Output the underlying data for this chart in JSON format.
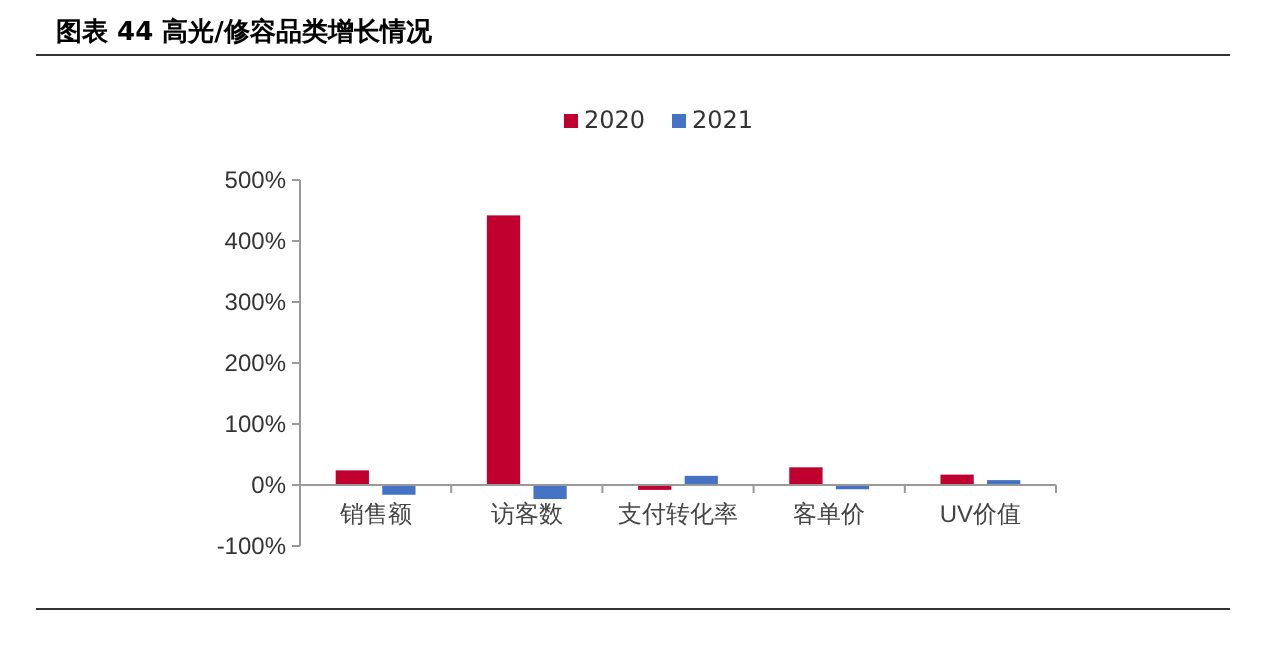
{
  "chart_data": {
    "type": "bar",
    "title": "图表 44 高光/修容品类增长情况",
    "categories": [
      "销售额",
      "访客数",
      "支付转化率",
      "客单价",
      "UV价值"
    ],
    "series": [
      {
        "name": "2020",
        "color": "#c0002f",
        "values": [
          24,
          442,
          -8,
          29,
          17
        ]
      },
      {
        "name": "2021",
        "color": "#4472c4",
        "values": [
          -16,
          -23,
          15,
          -7,
          8
        ]
      }
    ],
    "ylim": [
      -100,
      500
    ],
    "yticks": [
      {
        "value": -100,
        "label": "-100%"
      },
      {
        "value": 0,
        "label": "0%"
      },
      {
        "value": 100,
        "label": "100%"
      },
      {
        "value": 200,
        "label": "200%"
      },
      {
        "value": 300,
        "label": "300%"
      },
      {
        "value": 400,
        "label": "400%"
      },
      {
        "value": 500,
        "label": "500%"
      }
    ],
    "legend": "top",
    "grid": false
  }
}
